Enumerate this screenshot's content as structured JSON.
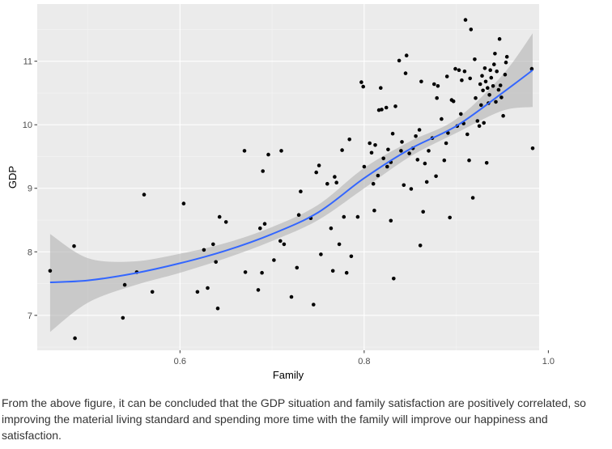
{
  "chart_data": {
    "type": "scatter",
    "title": "",
    "xlabel": "Family",
    "ylabel": "GDP",
    "xlim": [
      0.445,
      0.99
    ],
    "ylim": [
      6.45,
      11.9
    ],
    "x_ticks": [
      0.6,
      0.8,
      1.0
    ],
    "x_tick_labels": [
      "0.6",
      "0.8",
      "1.0"
    ],
    "y_ticks": [
      7,
      8,
      9,
      10,
      11
    ],
    "y_tick_labels": [
      "7",
      "8",
      "9",
      "10",
      "11"
    ],
    "grid": true,
    "colors": {
      "panel": "#ebebeb",
      "grid_major": "#ffffff",
      "grid_minor": "#f5f5f5",
      "points": "#000000",
      "smooth": "#3366ff",
      "ribbon": "#b3b3b3"
    },
    "smooth": {
      "method": "loess",
      "x": [
        0.459,
        0.5,
        0.55,
        0.6,
        0.65,
        0.7,
        0.75,
        0.8,
        0.85,
        0.9,
        0.95,
        0.983
      ],
      "y": [
        7.52,
        7.55,
        7.66,
        7.82,
        8.02,
        8.28,
        8.62,
        9.16,
        9.62,
        9.98,
        10.5,
        10.86
      ],
      "lower": [
        6.74,
        7.2,
        7.47,
        7.67,
        7.9,
        8.17,
        8.5,
        9.0,
        9.5,
        9.87,
        10.22,
        10.28
      ],
      "upper": [
        8.28,
        7.9,
        7.85,
        7.97,
        8.14,
        8.39,
        8.74,
        9.32,
        9.74,
        10.09,
        10.78,
        11.44
      ]
    },
    "series": [
      {
        "name": "countries",
        "points": [
          [
            0.459,
            7.7
          ],
          [
            0.485,
            8.09
          ],
          [
            0.486,
            6.64
          ],
          [
            0.538,
            6.96
          ],
          [
            0.54,
            7.48
          ],
          [
            0.553,
            7.68
          ],
          [
            0.561,
            8.9
          ],
          [
            0.57,
            7.37
          ],
          [
            0.604,
            8.76
          ],
          [
            0.619,
            7.37
          ],
          [
            0.626,
            8.03
          ],
          [
            0.63,
            7.43
          ],
          [
            0.636,
            8.12
          ],
          [
            0.639,
            7.84
          ],
          [
            0.641,
            7.11
          ],
          [
            0.643,
            8.55
          ],
          [
            0.65,
            8.47
          ],
          [
            0.67,
            9.59
          ],
          [
            0.671,
            7.68
          ],
          [
            0.685,
            7.4
          ],
          [
            0.687,
            8.37
          ],
          [
            0.689,
            7.67
          ],
          [
            0.69,
            9.27
          ],
          [
            0.692,
            8.44
          ],
          [
            0.696,
            9.53
          ],
          [
            0.702,
            7.87
          ],
          [
            0.709,
            8.17
          ],
          [
            0.71,
            9.59
          ],
          [
            0.713,
            8.12
          ],
          [
            0.721,
            7.29
          ],
          [
            0.727,
            7.75
          ],
          [
            0.729,
            8.58
          ],
          [
            0.731,
            8.95
          ],
          [
            0.742,
            8.53
          ],
          [
            0.745,
            7.17
          ],
          [
            0.748,
            9.25
          ],
          [
            0.751,
            9.36
          ],
          [
            0.753,
            7.96
          ],
          [
            0.76,
            9.07
          ],
          [
            0.764,
            8.37
          ],
          [
            0.766,
            7.7
          ],
          [
            0.768,
            9.18
          ],
          [
            0.77,
            9.09
          ],
          [
            0.773,
            8.12
          ],
          [
            0.776,
            9.6
          ],
          [
            0.778,
            8.55
          ],
          [
            0.781,
            7.67
          ],
          [
            0.784,
            9.77
          ],
          [
            0.786,
            7.93
          ],
          [
            0.793,
            8.55
          ],
          [
            0.797,
            10.67
          ],
          [
            0.799,
            10.6
          ],
          [
            0.8,
            9.34
          ],
          [
            0.806,
            9.71
          ],
          [
            0.808,
            9.56
          ],
          [
            0.81,
            9.07
          ],
          [
            0.811,
            8.65
          ],
          [
            0.812,
            9.68
          ],
          [
            0.815,
            9.2
          ],
          [
            0.816,
            10.23
          ],
          [
            0.818,
            10.58
          ],
          [
            0.819,
            10.24
          ],
          [
            0.821,
            9.47
          ],
          [
            0.824,
            10.27
          ],
          [
            0.825,
            9.34
          ],
          [
            0.826,
            9.61
          ],
          [
            0.829,
            8.49
          ],
          [
            0.829,
            9.41
          ],
          [
            0.831,
            9.86
          ],
          [
            0.832,
            7.58
          ],
          [
            0.834,
            10.29
          ],
          [
            0.838,
            11.01
          ],
          [
            0.84,
            9.59
          ],
          [
            0.841,
            9.73
          ],
          [
            0.843,
            9.05
          ],
          [
            0.845,
            10.81
          ],
          [
            0.846,
            11.09
          ],
          [
            0.849,
            9.55
          ],
          [
            0.851,
            8.99
          ],
          [
            0.853,
            9.63
          ],
          [
            0.856,
            9.82
          ],
          [
            0.858,
            9.45
          ],
          [
            0.86,
            9.92
          ],
          [
            0.861,
            8.1
          ],
          [
            0.862,
            10.68
          ],
          [
            0.864,
            8.63
          ],
          [
            0.866,
            9.39
          ],
          [
            0.868,
            9.1
          ],
          [
            0.87,
            9.59
          ],
          [
            0.874,
            9.79
          ],
          [
            0.876,
            10.64
          ],
          [
            0.878,
            9.19
          ],
          [
            0.879,
            10.42
          ],
          [
            0.88,
            10.61
          ],
          [
            0.884,
            10.09
          ],
          [
            0.887,
            9.44
          ],
          [
            0.889,
            9.71
          ],
          [
            0.89,
            10.76
          ],
          [
            0.891,
            9.87
          ],
          [
            0.893,
            8.54
          ],
          [
            0.895,
            10.39
          ],
          [
            0.897,
            10.37
          ],
          [
            0.899,
            10.88
          ],
          [
            0.901,
            9.98
          ],
          [
            0.903,
            10.86
          ],
          [
            0.905,
            10.17
          ],
          [
            0.906,
            10.7
          ],
          [
            0.908,
            10.02
          ],
          [
            0.909,
            10.84
          ],
          [
            0.91,
            11.65
          ],
          [
            0.912,
            9.85
          ],
          [
            0.914,
            9.44
          ],
          [
            0.915,
            10.73
          ],
          [
            0.916,
            11.5
          ],
          [
            0.918,
            8.85
          ],
          [
            0.92,
            11.03
          ],
          [
            0.921,
            10.42
          ],
          [
            0.923,
            10.06
          ],
          [
            0.925,
            9.98
          ],
          [
            0.926,
            10.64
          ],
          [
            0.927,
            10.31
          ],
          [
            0.928,
            10.77
          ],
          [
            0.929,
            10.54
          ],
          [
            0.93,
            10.03
          ],
          [
            0.931,
            10.89
          ],
          [
            0.932,
            10.68
          ],
          [
            0.933,
            9.4
          ],
          [
            0.934,
            10.58
          ],
          [
            0.935,
            10.34
          ],
          [
            0.936,
            10.47
          ],
          [
            0.937,
            10.86
          ],
          [
            0.938,
            10.74
          ],
          [
            0.94,
            10.61
          ],
          [
            0.941,
            10.95
          ],
          [
            0.942,
            11.12
          ],
          [
            0.943,
            10.36
          ],
          [
            0.944,
            10.84
          ],
          [
            0.946,
            10.55
          ],
          [
            0.947,
            11.35
          ],
          [
            0.948,
            10.62
          ],
          [
            0.949,
            10.43
          ],
          [
            0.951,
            10.14
          ],
          [
            0.953,
            10.79
          ],
          [
            0.954,
            10.98
          ],
          [
            0.955,
            11.07
          ],
          [
            0.982,
            10.88
          ],
          [
            0.983,
            9.63
          ]
        ]
      }
    ]
  },
  "caption": "From the above figure, it can be concluded that the GDP situation and family satisfaction are positively correlated, so improving the material living standard and spending more time with the family will improve our happiness and satisfaction."
}
